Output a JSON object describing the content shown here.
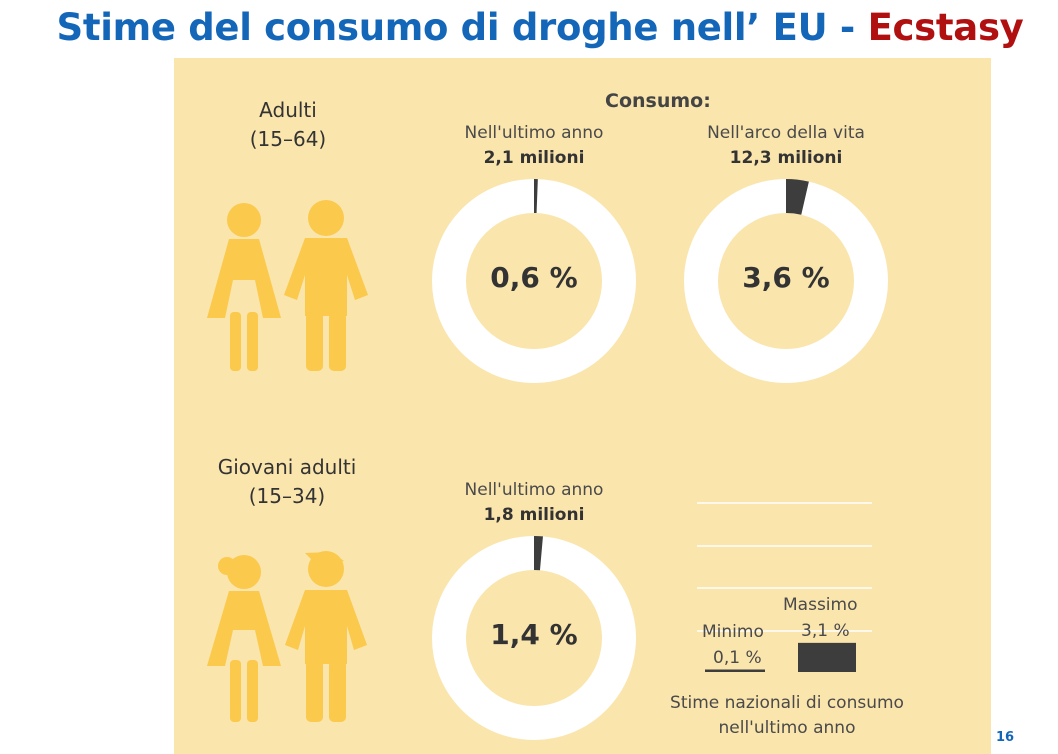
{
  "title": {
    "main": "Stime del consumo di droghe nell’ EU - ",
    "highlight": "Ecstasy"
  },
  "page_number": "16",
  "colors": {
    "title_blue": "#1466b8",
    "title_red": "#b01010",
    "panel_bg": "#fae5ad",
    "figure_icon": "#fbc94b",
    "ring": "#ffffff",
    "mark": "#3d3d3d"
  },
  "consumo_header": "Consumo:",
  "groups": [
    {
      "name": "Adulti",
      "range": "(15–64)",
      "icon": "adult-couple-icon"
    },
    {
      "name": "Giovani adulti",
      "range": "(15–34)",
      "icon": "young-couple-icon"
    }
  ],
  "bars_caption": {
    "line1": "Stime nazionali di consumo",
    "line2": "nell'ultimo anno"
  },
  "chart_data": [
    {
      "type": "pie",
      "group": "Adulti (15–64)",
      "label": "Nell'ultimo anno",
      "count": "2,1 milioni",
      "value": 0.6,
      "display": "0,6 %"
    },
    {
      "type": "pie",
      "group": "Adulti (15–64)",
      "label": "Nell'arco della vita",
      "count": "12,3 milioni",
      "value": 3.6,
      "display": "3,6 %"
    },
    {
      "type": "pie",
      "group": "Giovani adulti (15–34)",
      "label": "Nell'ultimo anno",
      "count": "1,8 milioni",
      "value": 1.4,
      "display": "1,4 %"
    },
    {
      "type": "bar",
      "categories": [
        "Minimo",
        "Massimo"
      ],
      "values": [
        0.1,
        3.1
      ],
      "value_labels": [
        "0,1 %",
        "3,1 %"
      ],
      "ylim": [
        0,
        15
      ],
      "grid": true
    }
  ]
}
